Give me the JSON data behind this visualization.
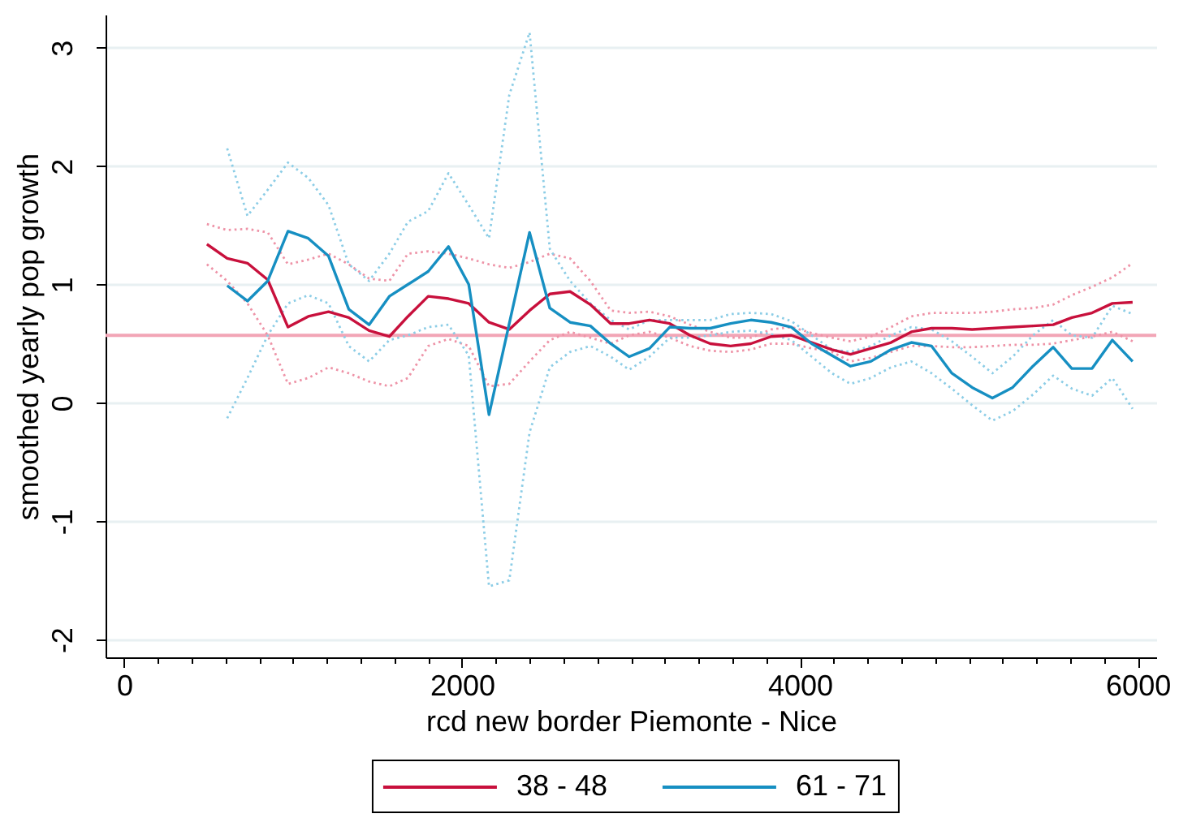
{
  "chart_data": {
    "type": "line",
    "xlabel": "rcd new border Piemonte - Nice",
    "ylabel": "smoothed yearly pop growth",
    "xlim": [
      -110,
      6110
    ],
    "ylim": [
      -2.15,
      3.28
    ],
    "xticks": [
      0,
      {
        "value": 200,
        "label": null
      },
      {
        "value": 400,
        "label": null
      },
      {
        "value": 600,
        "label": null
      },
      {
        "value": 800,
        "label": null
      },
      {
        "value": 1000,
        "label": null
      },
      {
        "value": 1200,
        "label": null
      },
      {
        "value": 1400,
        "label": null
      },
      {
        "value": 1600,
        "label": null
      },
      {
        "value": 1800,
        "label": null
      },
      2000,
      {
        "value": 2200,
        "label": null
      },
      {
        "value": 2400,
        "label": null
      },
      {
        "value": 2600,
        "label": null
      },
      {
        "value": 2800,
        "label": null
      },
      {
        "value": 3000,
        "label": null
      },
      {
        "value": 3200,
        "label": null
      },
      {
        "value": 3400,
        "label": null
      },
      {
        "value": 3600,
        "label": null
      },
      {
        "value": 3800,
        "label": null
      },
      4000,
      {
        "value": 4200,
        "label": null
      },
      {
        "value": 4400,
        "label": null
      },
      {
        "value": 4600,
        "label": null
      },
      {
        "value": 4800,
        "label": null
      },
      {
        "value": 5000,
        "label": null
      },
      {
        "value": 5200,
        "label": null
      },
      {
        "value": 5400,
        "label": null
      },
      {
        "value": 5600,
        "label": null
      },
      {
        "value": 5800,
        "label": null
      },
      6000
    ],
    "yticks": [
      -2,
      -1,
      0,
      1,
      2,
      3
    ],
    "grid": "y",
    "legend": "bottom",
    "ref_lines": [
      {
        "axis": "y",
        "value": 0.57,
        "color": "#f2a5b6"
      }
    ],
    "series": [
      {
        "name": "38 - 48",
        "color": "#c8103c",
        "x": [
          490,
          610,
          730,
          850,
          970,
          1090,
          1210,
          1330,
          1450,
          1570,
          1680,
          1800,
          1920,
          2040,
          2160,
          2280,
          2400,
          2520,
          2640,
          2760,
          2880,
          2990,
          3110,
          3230,
          3350,
          3470,
          3590,
          3710,
          3830,
          3950,
          4070,
          4190,
          4300,
          4420,
          4540,
          4660,
          4780,
          4900,
          5020,
          5140,
          5260,
          5380,
          5500,
          5610,
          5730,
          5850,
          5970
        ],
        "values": [
          1.34,
          1.22,
          1.18,
          1.04,
          0.64,
          0.73,
          0.77,
          0.72,
          0.61,
          0.56,
          0.73,
          0.9,
          0.88,
          0.84,
          0.68,
          0.62,
          0.78,
          0.92,
          0.94,
          0.83,
          0.67,
          0.67,
          0.7,
          0.67,
          0.57,
          0.5,
          0.48,
          0.5,
          0.56,
          0.57,
          0.51,
          0.45,
          0.41,
          0.46,
          0.51,
          0.6,
          0.63,
          0.63,
          0.62,
          0.63,
          0.64,
          0.65,
          0.66,
          0.72,
          0.76,
          0.84,
          0.85
        ]
      },
      {
        "name": "61 - 71",
        "color": "#168fc2",
        "x": [
          610,
          730,
          850,
          970,
          1090,
          1210,
          1330,
          1450,
          1570,
          1680,
          1800,
          1920,
          2040,
          2160,
          2280,
          2400,
          2520,
          2640,
          2760,
          2880,
          2990,
          3110,
          3230,
          3350,
          3470,
          3590,
          3710,
          3830,
          3950,
          4070,
          4190,
          4300,
          4420,
          4540,
          4660,
          4780,
          4900,
          5020,
          5140,
          5260,
          5380,
          5500,
          5610,
          5730,
          5850,
          5970
        ],
        "values": [
          0.99,
          0.86,
          1.03,
          1.45,
          1.39,
          1.24,
          0.79,
          0.66,
          0.9,
          1.0,
          1.11,
          1.32,
          1.0,
          -0.1,
          0.67,
          1.44,
          0.8,
          0.68,
          0.65,
          0.5,
          0.39,
          0.46,
          0.64,
          0.63,
          0.63,
          0.67,
          0.7,
          0.68,
          0.64,
          0.5,
          0.4,
          0.31,
          0.35,
          0.45,
          0.51,
          0.48,
          0.25,
          0.13,
          0.04,
          0.13,
          0.31,
          0.47,
          0.29,
          0.29,
          0.53,
          0.35
        ]
      },
      {
        "color": "#ee93a7",
        "line_style": "dotted",
        "x": [
          490,
          610,
          730,
          850,
          970,
          1090,
          1210,
          1330,
          1450,
          1570,
          1680,
          1800,
          1920,
          2040,
          2160,
          2280,
          2400,
          2520,
          2640,
          2760,
          2880,
          2990,
          3110,
          3230,
          3350,
          3470,
          3590,
          3710,
          3830,
          3950,
          4070,
          4190,
          4300,
          4420,
          4540,
          4660,
          4780,
          4900,
          5020,
          5140,
          5260,
          5380,
          5500,
          5610,
          5730,
          5850,
          5970
        ],
        "values": [
          1.51,
          1.46,
          1.47,
          1.44,
          1.17,
          1.21,
          1.26,
          1.17,
          1.05,
          1.03,
          1.26,
          1.28,
          1.26,
          1.22,
          1.17,
          1.14,
          1.19,
          1.26,
          1.22,
          1.03,
          0.78,
          0.76,
          0.77,
          0.73,
          0.66,
          0.6,
          0.55,
          0.55,
          0.62,
          0.64,
          0.59,
          0.55,
          0.52,
          0.56,
          0.64,
          0.73,
          0.76,
          0.76,
          0.76,
          0.77,
          0.79,
          0.8,
          0.83,
          0.91,
          0.98,
          1.06,
          1.18
        ]
      },
      {
        "color": "#ee93a7",
        "line_style": "dotted",
        "x": [
          490,
          610,
          730,
          850,
          970,
          1090,
          1210,
          1330,
          1450,
          1570,
          1680,
          1800,
          1920,
          2040,
          2160,
          2280,
          2400,
          2520,
          2640,
          2760,
          2880,
          2990,
          3110,
          3230,
          3350,
          3470,
          3590,
          3710,
          3830,
          3950,
          4070,
          4190,
          4300,
          4420,
          4540,
          4660,
          4780,
          4900,
          5020,
          5140,
          5260,
          5380,
          5500,
          5610,
          5730,
          5850,
          5970
        ],
        "values": [
          1.17,
          1.03,
          0.84,
          0.57,
          0.16,
          0.21,
          0.3,
          0.25,
          0.18,
          0.14,
          0.21,
          0.48,
          0.54,
          0.48,
          0.14,
          0.16,
          0.35,
          0.53,
          0.6,
          0.55,
          0.5,
          0.57,
          0.6,
          0.55,
          0.48,
          0.44,
          0.43,
          0.45,
          0.5,
          0.5,
          0.46,
          0.43,
          0.35,
          0.38,
          0.43,
          0.48,
          0.48,
          0.47,
          0.47,
          0.48,
          0.49,
          0.49,
          0.5,
          0.53,
          0.56,
          0.6,
          0.52
        ]
      },
      {
        "color": "#8ccde6",
        "line_style": "dotted",
        "x": [
          610,
          730,
          850,
          970,
          1090,
          1210,
          1330,
          1450,
          1570,
          1680,
          1800,
          1920,
          2040,
          2160,
          2280,
          2400,
          2520,
          2640,
          2760,
          2880,
          2990,
          3110,
          3230,
          3350,
          3470,
          3590,
          3710,
          3830,
          3950,
          4070,
          4190,
          4300,
          4420,
          4540,
          4660,
          4780,
          4900,
          5020,
          5140,
          5260,
          5380,
          5500,
          5610,
          5730,
          5850,
          5970
        ],
        "values": [
          2.15,
          1.58,
          1.8,
          2.03,
          1.9,
          1.67,
          1.17,
          1.03,
          1.26,
          1.53,
          1.62,
          1.94,
          1.67,
          1.39,
          2.6,
          3.13,
          1.3,
          1.03,
          0.84,
          0.7,
          0.62,
          0.7,
          0.7,
          0.7,
          0.7,
          0.75,
          0.76,
          0.75,
          0.69,
          0.57,
          0.45,
          0.43,
          0.48,
          0.57,
          0.64,
          0.62,
          0.52,
          0.39,
          0.25,
          0.39,
          0.57,
          0.7,
          0.57,
          0.55,
          0.82,
          0.75
        ]
      },
      {
        "color": "#8ccde6",
        "line_style": "dotted",
        "x": [
          610,
          730,
          850,
          970,
          1090,
          1210,
          1330,
          1450,
          1570,
          1680,
          1800,
          1920,
          2040,
          2160,
          2280,
          2400,
          2520,
          2640,
          2760,
          2880,
          2990,
          3110,
          3230,
          3350,
          3470,
          3590,
          3710,
          3830,
          3950,
          4070,
          4190,
          4300,
          4420,
          4540,
          4660,
          4780,
          4900,
          5020,
          5140,
          5260,
          5380,
          5500,
          5610,
          5730,
          5850,
          5970
        ],
        "values": [
          -0.13,
          0.21,
          0.57,
          0.84,
          0.91,
          0.84,
          0.48,
          0.35,
          0.53,
          0.57,
          0.64,
          0.66,
          0.4,
          -1.55,
          -1.5,
          -0.25,
          0.3,
          0.43,
          0.48,
          0.39,
          0.28,
          0.39,
          0.55,
          0.55,
          0.57,
          0.6,
          0.61,
          0.58,
          0.53,
          0.39,
          0.25,
          0.16,
          0.21,
          0.3,
          0.35,
          0.25,
          0.12,
          -0.02,
          -0.15,
          -0.07,
          0.07,
          0.23,
          0.12,
          0.06,
          0.21,
          -0.05
        ]
      }
    ]
  }
}
